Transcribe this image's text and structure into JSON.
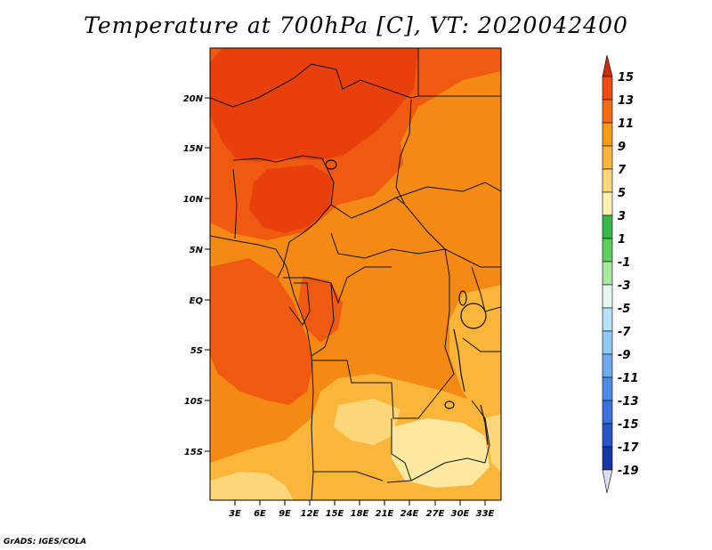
{
  "title": "Temperature at 700hPa [C], VT: 2020042400",
  "credit": "GrADS: IGES/COLA",
  "map": {
    "region": "Central Africa",
    "lon_range_deg": [
      0,
      35
    ],
    "lat_range_deg": [
      -20,
      25
    ],
    "lon_ticks": [
      "3E",
      "6E",
      "9E",
      "12E",
      "15E",
      "18E",
      "21E",
      "24E",
      "27E",
      "30E",
      "33E"
    ],
    "lat_ticks": [
      "20N",
      "15N",
      "10N",
      "5N",
      "EQ",
      "5S",
      "10S",
      "15S"
    ]
  },
  "colorbar": {
    "labels": [
      "15",
      "13",
      "11",
      "9",
      "7",
      "5",
      "3",
      "1",
      "-1",
      "-3",
      "-5",
      "-7",
      "-9",
      "-11",
      "-13",
      "-15",
      "-17",
      "-19"
    ],
    "colors": {
      "above_15": "#d32a0a",
      "13_15": "#f24a0f",
      "11_13": "#f66a12",
      "9_11": "#f99a14",
      "7_9": "#fbb63a",
      "5_7": "#fcd77a",
      "3_5": "#fdf0b0",
      "1_3": "#36b84a",
      "-1_1": "#5ece5c",
      "-3_-1": "#a8e8a0",
      "-5_-3": "#e4f8ee",
      "-7_-5": "#b8e2fc",
      "-9_-7": "#90c8f6",
      "-11_-9": "#6eaaf0",
      "-13_-11": "#4f8cea",
      "-15_-13": "#3a72e0",
      "-17_-15": "#2456cc",
      "-19_-17": "#1436a8",
      "below_-19": "#0d1878",
      "tail_low": "#dcdcf6"
    }
  },
  "colors": {
    "warmest": "#e8400c",
    "hot": "#f05a10",
    "warm": "#f48a14",
    "mild": "#fbb63a",
    "cooler": "#fcd77a",
    "coolest": "#fde8a0",
    "border": "#111111"
  }
}
